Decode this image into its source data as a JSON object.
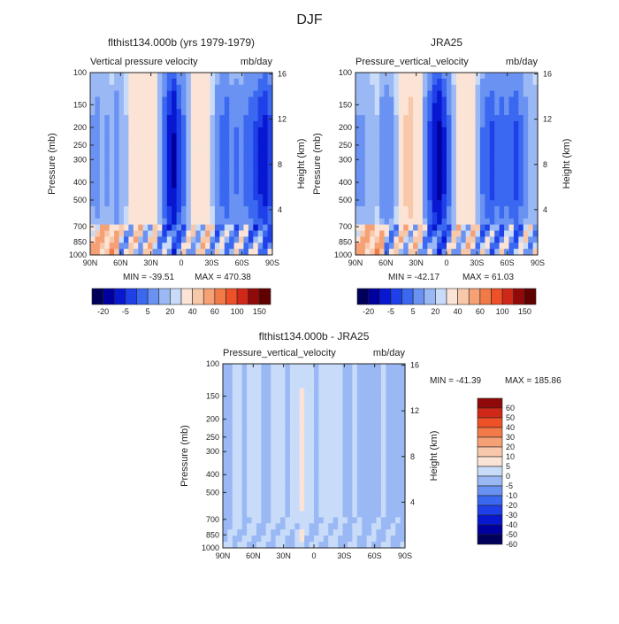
{
  "figure_title": "DJF",
  "colors": {
    "fill_panel_ab": [
      "#00005a",
      "#0000a0",
      "#0818d0",
      "#1f40e8",
      "#3a68f0",
      "#6a92f2",
      "#9ab8f4",
      "#c8dcfa",
      "#fbe4d6",
      "#f8c8aa",
      "#f5a075",
      "#f27a48",
      "#ee5028",
      "#d02818",
      "#900a0a",
      "#600000"
    ],
    "fill_panel_diff": [
      "#00005a",
      "#0000a0",
      "#0818d0",
      "#1f40e8",
      "#3a68f0",
      "#6a92f2",
      "#9ab8f4",
      "#c8dcfa",
      "#fbe4d6",
      "#f8c8aa",
      "#f5a075",
      "#f27a48",
      "#ee5028",
      "#d02818",
      "#900a0a"
    ],
    "frame": "#222222"
  },
  "chart_data": [
    {
      "type": "heatmap",
      "panel": "a",
      "title": "flthist134.000b (yrs 1979-1979)",
      "subtitle_left": "Vertical pressure velocity",
      "subtitle_right": "mb/day",
      "xlabel": "",
      "ylabel": "Pressure (mb)",
      "ylabel_right": "Height (km)",
      "x_ticks": [
        "90N",
        "60N",
        "30N",
        "0",
        "30S",
        "60S",
        "90S"
      ],
      "y_ticks": [
        "100",
        "150",
        "200",
        "250",
        "300",
        "400",
        "500",
        "700",
        "850",
        "1000"
      ],
      "y_right_ticks": [
        "16",
        "12",
        "8",
        "4"
      ],
      "min_text": "MIN = -39.51",
      "max_text": "MAX = 470.38",
      "colorbar_orientation": "horizontal",
      "colorbar_labels": [
        "-20",
        "-5",
        "5",
        "20",
        "40",
        "60",
        "100",
        "150"
      ],
      "lat_profile": [
        -5,
        -6,
        -4,
        -5,
        -3,
        -7,
        -4,
        -2,
        0,
        2,
        4,
        3,
        2,
        0,
        -4,
        -12,
        -20,
        -26,
        -16,
        -10,
        -4,
        0,
        2,
        4,
        2,
        -2,
        -8,
        -10,
        -12,
        -8,
        -9,
        -8,
        -10,
        -12,
        -14,
        -18,
        -20,
        -15
      ]
    },
    {
      "type": "heatmap",
      "panel": "b",
      "title": "JRA25",
      "subtitle_left": "Pressure_vertical_velocity",
      "subtitle_right": "mb/day",
      "xlabel": "",
      "ylabel": "Pressure (mb)",
      "ylabel_right": "Height (km)",
      "x_ticks": [
        "90N",
        "60N",
        "30N",
        "0",
        "30S",
        "60S",
        "90S"
      ],
      "y_ticks": [
        "100",
        "150",
        "200",
        "250",
        "300",
        "400",
        "500",
        "700",
        "850",
        "1000"
      ],
      "y_right_ticks": [
        "16",
        "12",
        "8",
        "4"
      ],
      "min_text": "MIN = -42.17",
      "max_text": "MAX = 61.03",
      "colorbar_orientation": "horizontal",
      "colorbar_labels": [
        "-20",
        "-5",
        "5",
        "20",
        "40",
        "60",
        "100",
        "150"
      ],
      "lat_profile": [
        -5,
        -5,
        -4,
        -3,
        -2,
        -6,
        -8,
        -6,
        -2,
        2,
        5,
        6,
        3,
        0,
        -6,
        -14,
        -22,
        -28,
        -18,
        -10,
        -3,
        1,
        2,
        4,
        2,
        -3,
        -9,
        -12,
        -14,
        -10,
        -12,
        -10,
        -12,
        -14,
        -10,
        -6,
        -4,
        -3
      ]
    },
    {
      "type": "heatmap",
      "panel": "diff",
      "title": "flthist134.000b - JRA25",
      "subtitle_left": "Pressure_vertical_velocity",
      "subtitle_right": "mb/day",
      "xlabel": "",
      "ylabel": "Pressure (mb)",
      "ylabel_right": "Height (km)",
      "x_ticks": [
        "90N",
        "60N",
        "30N",
        "0",
        "30S",
        "60S",
        "90S"
      ],
      "y_ticks": [
        "100",
        "150",
        "200",
        "250",
        "300",
        "400",
        "500",
        "700",
        "850",
        "1000"
      ],
      "y_right_ticks": [
        "16",
        "12",
        "8",
        "4"
      ],
      "min_text": "MIN = -41.39",
      "max_text": "MAX = 185.86",
      "colorbar_orientation": "vertical",
      "colorbar_labels": [
        "60",
        "50",
        "40",
        "30",
        "20",
        "10",
        "5",
        "0",
        "-5",
        "-10",
        "-20",
        "-30",
        "-40",
        "-50",
        "-60"
      ],
      "lat_profile": [
        -2,
        -2,
        0,
        2,
        -1,
        0,
        2,
        0,
        -2,
        -1,
        1,
        2,
        0,
        -1,
        2,
        4,
        6,
        3,
        1,
        -1,
        0,
        2,
        3,
        1,
        0,
        -1,
        -2,
        0,
        -1,
        -2,
        -1,
        -2,
        -1,
        0,
        -2,
        -3,
        -2,
        -2
      ]
    }
  ]
}
